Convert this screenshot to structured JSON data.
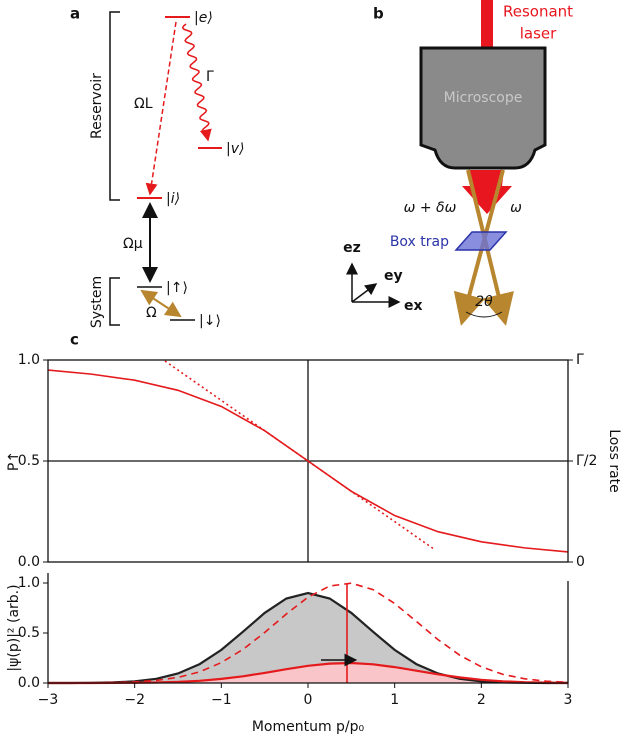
{
  "panel_labels": [
    "a",
    "b",
    "c"
  ],
  "panel_a": {
    "reservoir": "Reservoir",
    "system": "System",
    "state_e": "|e⟩",
    "state_v": "|v⟩",
    "state_i": "|i⟩",
    "state_up": "|↑⟩",
    "state_down": "|↓⟩",
    "gamma": "Γ",
    "omega_l": "ΩL",
    "omega_mu": "Ωμ",
    "omega": "Ω"
  },
  "panel_b": {
    "laser_line1": "Resonant",
    "laser_line2": "laser",
    "microscope": "Microscope",
    "freq_left": "ω + δω",
    "freq_right": "ω",
    "box_trap": "Box trap",
    "ez": "ez",
    "ey": "ey",
    "ex": "ex",
    "angle": "2θ"
  },
  "chart_data": [
    {
      "type": "line",
      "ylabel": "P↑",
      "y2label": "Loss rate",
      "xlim": [
        -3,
        3
      ],
      "ylim": [
        0,
        1
      ],
      "yticks": [
        {
          "value": 0,
          "label": "0.0"
        },
        {
          "value": 0.5,
          "label": "0.5"
        },
        {
          "value": 1,
          "label": "1.0"
        }
      ],
      "y2lim": [
        0,
        1
      ],
      "y2ticks": [
        0,
        {
          "value": 0.5,
          "label": "Γ/2"
        },
        {
          "value": 1,
          "label": "Γ"
        }
      ],
      "reference_lines": {
        "x": 0,
        "y": 0.5
      },
      "series": [
        {
          "color": "#e41a1c",
          "x": [
            -3,
            -2.5,
            -2,
            -1.5,
            -1,
            -0.5,
            0,
            0.5,
            1,
            1.5,
            2,
            2.5,
            3
          ],
          "values": [
            0.95,
            0.93,
            0.9,
            0.85,
            0.77,
            0.65,
            0.5,
            0.35,
            0.23,
            0.15,
            0.1,
            0.07,
            0.05
          ]
        },
        {
          "color": "#e41a1c",
          "style": "dotted",
          "x": [
            -1.65,
            1.45
          ],
          "values": [
            0.995,
            0.065
          ]
        }
      ]
    },
    {
      "type": "line",
      "ylabel": "|ψ(p)|² (arb.)",
      "xlabel": "Momentum p/p₀",
      "xlim": [
        -3,
        3
      ],
      "ylim": [
        0,
        1.1
      ],
      "xticks": [
        {
          "value": -3,
          "label": "−3"
        },
        {
          "value": -2,
          "label": "−2"
        },
        {
          "value": -1,
          "label": "−1"
        },
        0,
        1,
        2,
        3
      ],
      "yticks": [
        {
          "value": 0,
          "label": "0.0"
        },
        {
          "value": 0.5,
          "label": "0.5"
        },
        {
          "value": 1,
          "label": "1.0"
        }
      ],
      "x": [
        -3,
        -2.75,
        -2.5,
        -2.25,
        -2,
        -1.75,
        -1.5,
        -1.25,
        -1,
        -0.75,
        -0.5,
        -0.25,
        0,
        0.25,
        0.5,
        0.75,
        1,
        1.25,
        1.5,
        1.75,
        2,
        2.25,
        2.5,
        2.75,
        3
      ],
      "series": [
        {
          "color": "#222222",
          "fill": "#c8c8c8",
          "values": [
            0,
            0,
            0.002,
            0.006,
            0.016,
            0.042,
            0.095,
            0.189,
            0.331,
            0.513,
            0.701,
            0.845,
            0.9,
            0.845,
            0.701,
            0.513,
            0.331,
            0.189,
            0.095,
            0.042,
            0.016,
            0.006,
            0.002,
            0,
            0
          ]
        },
        {
          "color": "#e41a1c",
          "style": "dashed",
          "values": [
            0,
            0,
            0.001,
            0.004,
            0.011,
            0.026,
            0.056,
            0.112,
            0.204,
            0.336,
            0.505,
            0.69,
            0.858,
            0.97,
            0.998,
            0.934,
            0.795,
            0.616,
            0.434,
            0.278,
            0.162,
            0.086,
            0.042,
            0.018,
            0.007
          ]
        },
        {
          "color": "#e41a1c",
          "fill": "#f9c5c8",
          "values": [
            0,
            0,
            0,
            0.001,
            0.002,
            0.005,
            0.011,
            0.022,
            0.041,
            0.067,
            0.101,
            0.138,
            0.172,
            0.194,
            0.2,
            0.187,
            0.159,
            0.123,
            0.087,
            0.056,
            0.032,
            0.017,
            0.008,
            0.004,
            0.001
          ]
        }
      ],
      "marker_line": {
        "x": 0.45,
        "y": 1.0,
        "color": "#e41a1c"
      },
      "arrow": {
        "x": [
          0.15,
          0.55
        ],
        "y": 0.23
      }
    }
  ]
}
